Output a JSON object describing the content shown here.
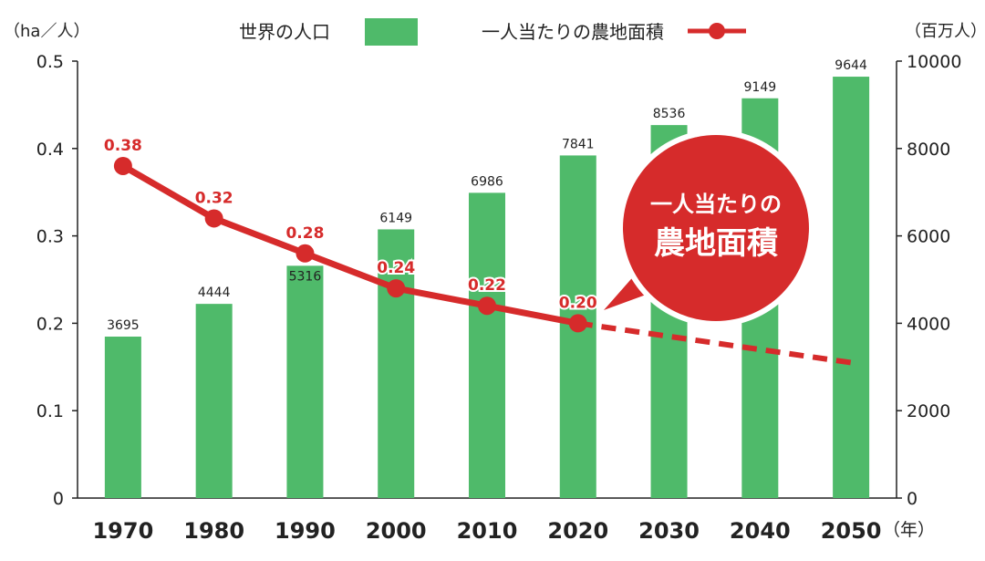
{
  "chart_data": {
    "type": "bar+line",
    "categories": [
      "1970",
      "1980",
      "1990",
      "2000",
      "2010",
      "2020",
      "2030",
      "2040",
      "2050"
    ],
    "x_unit": "（年）",
    "series": [
      {
        "name": "世界の人口",
        "type": "bar",
        "axis": "right",
        "color": "#4fba6a",
        "values": [
          3695,
          4444,
          5316,
          6149,
          6986,
          7841,
          8536,
          9149,
          9644
        ],
        "labels": [
          "3695",
          "4444",
          "5316",
          "6149",
          "6986",
          "7841",
          "8536",
          "9149",
          "9644"
        ]
      },
      {
        "name": "一人当たりの農地面積",
        "type": "line",
        "axis": "left",
        "color": "#d62b2b",
        "values": [
          0.38,
          0.32,
          0.28,
          0.24,
          0.22,
          0.2,
          null,
          null,
          0.155
        ],
        "labels": [
          "0.38",
          "0.32",
          "0.28",
          "0.24",
          "0.22",
          "0.20",
          "",
          "",
          ""
        ],
        "projection_from": "2020",
        "projection_style": "dashed"
      }
    ],
    "left_axis": {
      "unit": "（ha／人）",
      "ylim": [
        0,
        0.5
      ],
      "ticks": [
        "0",
        "0.1",
        "0.2",
        "0.3",
        "0.4",
        "0.5"
      ]
    },
    "right_axis": {
      "unit": "（百万人）",
      "ylim": [
        0,
        10000
      ],
      "ticks": [
        "0",
        "2000",
        "4000",
        "6000",
        "8000",
        "10000"
      ]
    },
    "legend": {
      "placement": "top-center"
    },
    "grid": false,
    "callout": {
      "line1": "一人当たりの",
      "line2": "農地面積",
      "color": "#d62b2b"
    }
  }
}
